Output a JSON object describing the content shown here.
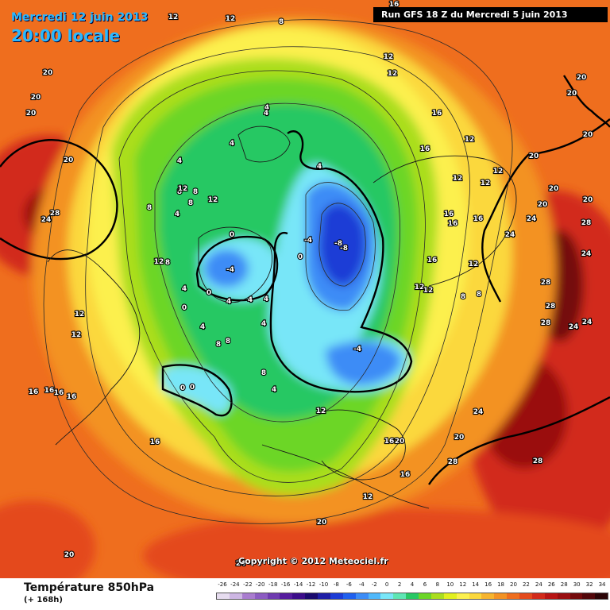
{
  "header": {
    "date": "Mercredi 12 juin 2013",
    "time": "20:00 locale",
    "run": "Run GFS 18 Z du Mercredi 5 juin 2013"
  },
  "copyright": "Copyright © 2012 Meteociel.fr",
  "footer": {
    "title": "Température 850hPa",
    "subtitle": "(+ 168h)"
  },
  "scale": {
    "labels": [
      "-26",
      "-24",
      "-22",
      "-20",
      "-18",
      "-16",
      "-14",
      "-12",
      "-10",
      "-8",
      "-6",
      "-4",
      "-2",
      "0",
      "2",
      "4",
      "6",
      "8",
      "10",
      "12",
      "14",
      "16",
      "18",
      "20",
      "22",
      "24",
      "26",
      "28",
      "30",
      "32",
      "34"
    ],
    "colors": [
      "#e6dcef",
      "#cdb6e3",
      "#a97ccf",
      "#8c5cc2",
      "#6f3bb0",
      "#561c9e",
      "#3c0d8a",
      "#1a0a6e",
      "#1e1ea6",
      "#1c3cd6",
      "#2060ee",
      "#3c8cf6",
      "#50b8fa",
      "#78e6f8",
      "#5ee6b4",
      "#28c864",
      "#6cd628",
      "#aade1e",
      "#e2f01e",
      "#fcf04e",
      "#fbd83c",
      "#f6b42e",
      "#f39224",
      "#ef6e1e",
      "#e44a1c",
      "#d22a1a",
      "#b81414",
      "#9a0e10",
      "#740a0c",
      "#52060a",
      "#2a0406"
    ]
  },
  "contour_labels": [
    {
      "v": "-8"
    },
    {
      "v": "-8"
    },
    {
      "v": "-4"
    },
    {
      "v": "-4"
    },
    {
      "v": "-4"
    },
    {
      "v": "0"
    },
    {
      "v": "0"
    },
    {
      "v": "0"
    },
    {
      "v": "0"
    },
    {
      "v": "0"
    },
    {
      "v": "0"
    },
    {
      "v": "4"
    },
    {
      "v": "4"
    },
    {
      "v": "4"
    },
    {
      "v": "4"
    },
    {
      "v": "4"
    },
    {
      "v": "4"
    },
    {
      "v": "4"
    },
    {
      "v": "4"
    },
    {
      "v": "4"
    },
    {
      "v": "4"
    },
    {
      "v": "4"
    },
    {
      "v": "4"
    },
    {
      "v": "4"
    },
    {
      "v": "8"
    },
    {
      "v": "8"
    },
    {
      "v": "8"
    },
    {
      "v": "8"
    },
    {
      "v": "8"
    },
    {
      "v": "8"
    },
    {
      "v": "8"
    },
    {
      "v": "8"
    },
    {
      "v": "8"
    },
    {
      "v": "8"
    },
    {
      "v": "8"
    },
    {
      "v": "12"
    },
    {
      "v": "12"
    },
    {
      "v": "12"
    },
    {
      "v": "12"
    },
    {
      "v": "12"
    },
    {
      "v": "12"
    },
    {
      "v": "12"
    },
    {
      "v": "12"
    },
    {
      "v": "12"
    },
    {
      "v": "12"
    },
    {
      "v": "12"
    },
    {
      "v": "12"
    },
    {
      "v": "12"
    },
    {
      "v": "12"
    },
    {
      "v": "12"
    },
    {
      "v": "12"
    },
    {
      "v": "12"
    },
    {
      "v": "12"
    },
    {
      "v": "16"
    },
    {
      "v": "16"
    },
    {
      "v": "16"
    },
    {
      "v": "16"
    },
    {
      "v": "16"
    },
    {
      "v": "16"
    },
    {
      "v": "16"
    },
    {
      "v": "16"
    },
    {
      "v": "16"
    },
    {
      "v": "16"
    },
    {
      "v": "16"
    },
    {
      "v": "16"
    },
    {
      "v": "16"
    },
    {
      "v": "16"
    },
    {
      "v": "20"
    },
    {
      "v": "20"
    },
    {
      "v": "20"
    },
    {
      "v": "20"
    },
    {
      "v": "20"
    },
    {
      "v": "20"
    },
    {
      "v": "20"
    },
    {
      "v": "20"
    },
    {
      "v": "20"
    },
    {
      "v": "20"
    },
    {
      "v": "20"
    },
    {
      "v": "20"
    },
    {
      "v": "20"
    },
    {
      "v": "20"
    },
    {
      "v": "20"
    },
    {
      "v": "24"
    },
    {
      "v": "24"
    },
    {
      "v": "24"
    },
    {
      "v": "24"
    },
    {
      "v": "24"
    },
    {
      "v": "24"
    },
    {
      "v": "24"
    },
    {
      "v": "24"
    },
    {
      "v": "28"
    },
    {
      "v": "28"
    },
    {
      "v": "28"
    },
    {
      "v": "28"
    },
    {
      "v": "28"
    },
    {
      "v": "28"
    },
    {
      "v": "28"
    }
  ]
}
